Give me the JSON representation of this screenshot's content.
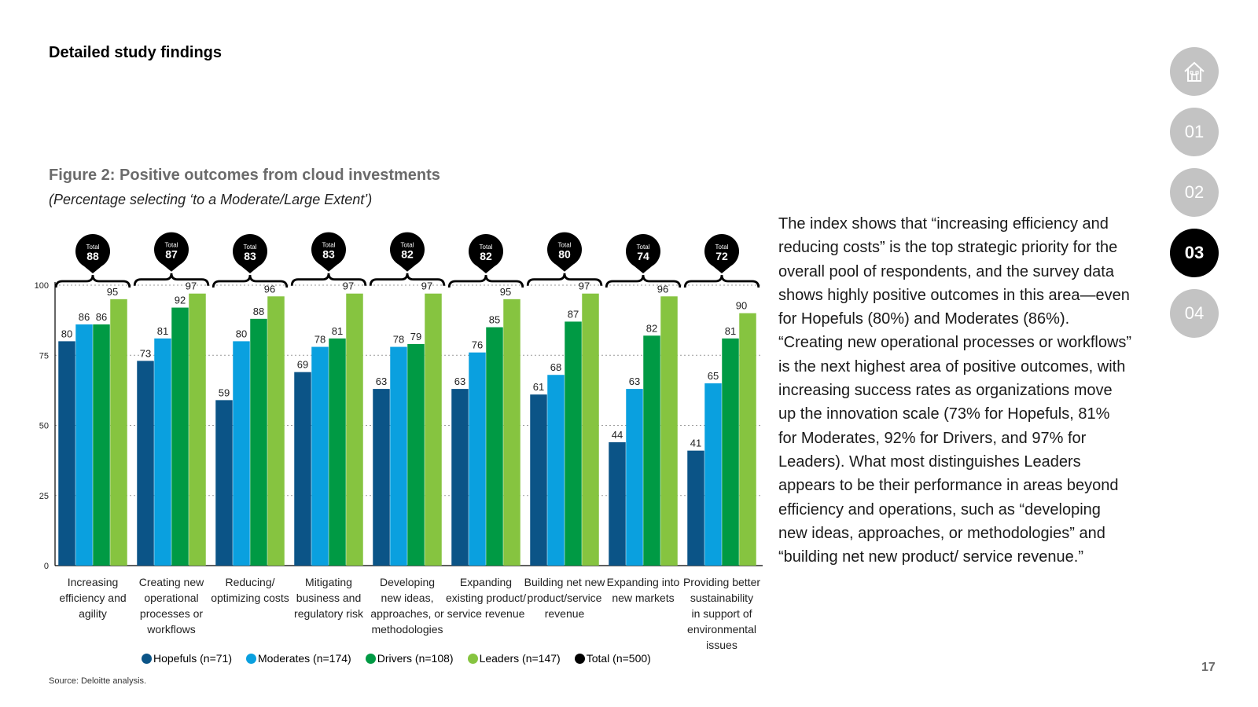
{
  "header": {
    "title": "Detailed study findings"
  },
  "figure": {
    "title": "Figure 2: Positive outcomes from cloud investments",
    "subtitle": "(Percentage selecting ‘to a Moderate/Large Extent’)"
  },
  "chart_data": {
    "type": "bar",
    "title": "Figure 2: Positive outcomes from cloud investments",
    "ylim": [
      0,
      100
    ],
    "yticks": [
      0,
      25,
      50,
      75,
      100
    ],
    "categories": [
      "Increasing efficiency and agility",
      "Creating new operational processes or workflows",
      "Reducing/ optimizing costs",
      "Mitigating business and regulatory risk",
      "Developing new ideas, approaches, or methodologies",
      "Expanding existing product/ service revenue",
      "Building net new product/service revenue",
      "Expanding into new markets",
      "Providing better sustainability in support of environmental issues"
    ],
    "category_lines": [
      [
        "Increasing",
        "efficiency and",
        "agility"
      ],
      [
        "Creating new",
        "operational",
        "processes or",
        "workflows"
      ],
      [
        "Reducing/",
        "optimizing costs"
      ],
      [
        "Mitigating",
        "business and",
        "regulatory risk"
      ],
      [
        "Developing",
        "new ideas,",
        "approaches, or",
        "methodologies"
      ],
      [
        "Expanding",
        "existing product/",
        "service revenue"
      ],
      [
        "Building net new",
        "product/service",
        "revenue"
      ],
      [
        "Expanding into",
        "new markets"
      ],
      [
        "Providing better",
        "sustainability",
        "in support of",
        "environmental",
        "issues"
      ]
    ],
    "series": [
      {
        "name": "Hopefuls (n=71)",
        "color": "#0b5487",
        "values": [
          80,
          73,
          59,
          69,
          63,
          63,
          61,
          44,
          41
        ]
      },
      {
        "name": "Moderates (n=174)",
        "color": "#0aa0df",
        "values": [
          86,
          81,
          80,
          78,
          78,
          76,
          68,
          63,
          65
        ]
      },
      {
        "name": "Drivers (n=108)",
        "color": "#009a44",
        "values": [
          86,
          92,
          88,
          81,
          79,
          85,
          87,
          82,
          81
        ]
      },
      {
        "name": "Leaders (n=147)",
        "color": "#86c440",
        "values": [
          95,
          97,
          96,
          97,
          97,
          95,
          97,
          96,
          90
        ]
      }
    ],
    "total": {
      "name": "Total  (n=500)",
      "label": "Total",
      "color": "#000000",
      "values": [
        88,
        87,
        83,
        83,
        82,
        82,
        80,
        74,
        72
      ]
    }
  },
  "source": "Source: Deloitte analysis.",
  "body_text": "The index shows that “increasing efficiency and reducing costs” is the top strategic priority for the overall pool of respondents, and the survey data shows highly positive outcomes in this area—even for Hopefuls (80%) and Moderates (86%). “Creating new operational processes or workflows” is the next highest area of positive outcomes, with increasing success rates as organizations move up the innovation scale (73% for Hopefuls, 81% for Moderates, 92% for Drivers, and 97% for Leaders). What most distinguishes Leaders appears to be their performance in areas beyond efficiency and operations, such as “developing new ideas, approaches, or methodologies” and “building net new product/ service revenue.”",
  "nav": {
    "home_icon": "home-icon",
    "items": [
      "01",
      "02",
      "03",
      "04"
    ],
    "active": "03"
  },
  "page_number": "17"
}
